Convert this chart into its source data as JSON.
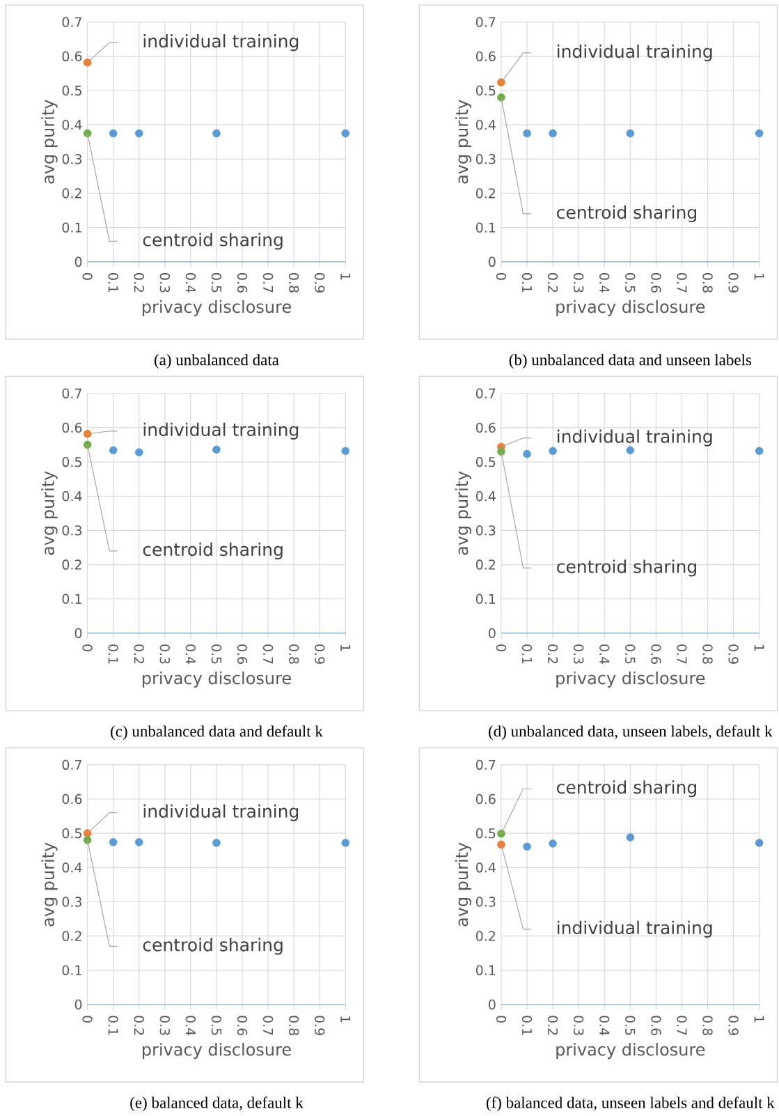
{
  "chart_data": [
    {
      "type": "scatter",
      "title": "(a) unbalanced data",
      "xlabel": "privacy disclosure",
      "ylabel": "avg purity",
      "xlim": [
        0,
        1
      ],
      "xticks": [
        0,
        0.1,
        0.2,
        0.3,
        0.4,
        0.5,
        0.6,
        0.7,
        0.8,
        0.9,
        1
      ],
      "ylim": [
        0,
        0.7
      ],
      "yticks": [
        0,
        0.1,
        0.2,
        0.3,
        0.4,
        0.5,
        0.6,
        0.7
      ],
      "grid": true,
      "marker": "circle",
      "series": [
        {
          "color": "#5b9bd5",
          "x": [
            0.1,
            0.2,
            0.5,
            1
          ],
          "values": [
            0.375,
            0.375,
            0.375,
            0.375
          ]
        },
        {
          "name": "individual training",
          "color": "#ed7d31",
          "x": [
            0
          ],
          "values": [
            0.582
          ]
        },
        {
          "name": "centroid sharing",
          "color": "#70ad47",
          "x": [
            0
          ],
          "values": [
            0.375
          ]
        }
      ]
    },
    {
      "type": "scatter",
      "title": "(b) unbalanced data and unseen labels",
      "xlabel": "privacy disclosure",
      "ylabel": "avg purity",
      "xlim": [
        0,
        1
      ],
      "xticks": [
        0,
        0.1,
        0.2,
        0.3,
        0.4,
        0.5,
        0.6,
        0.7,
        0.8,
        0.9,
        1
      ],
      "ylim": [
        0,
        0.7
      ],
      "yticks": [
        0,
        0.1,
        0.2,
        0.3,
        0.4,
        0.5,
        0.6,
        0.7
      ],
      "grid": true,
      "marker": "circle",
      "series": [
        {
          "color": "#5b9bd5",
          "x": [
            0.1,
            0.2,
            0.5,
            1
          ],
          "values": [
            0.375,
            0.375,
            0.375,
            0.375
          ]
        },
        {
          "name": "individual training",
          "color": "#ed7d31",
          "x": [
            0
          ],
          "values": [
            0.524
          ]
        },
        {
          "name": "centroid sharing",
          "color": "#70ad47",
          "x": [
            0
          ],
          "values": [
            0.48
          ]
        }
      ]
    },
    {
      "type": "scatter",
      "title": "(c) unbalanced data and default k",
      "xlabel": "privacy disclosure",
      "ylabel": "avg purity",
      "xlim": [
        0,
        1
      ],
      "xticks": [
        0,
        0.1,
        0.2,
        0.3,
        0.4,
        0.5,
        0.6,
        0.7,
        0.8,
        0.9,
        1
      ],
      "ylim": [
        0,
        0.7
      ],
      "yticks": [
        0,
        0.1,
        0.2,
        0.3,
        0.4,
        0.5,
        0.6,
        0.7
      ],
      "grid": true,
      "marker": "circle",
      "series": [
        {
          "color": "#5b9bd5",
          "x": [
            0.1,
            0.2,
            0.5,
            1
          ],
          "values": [
            0.534,
            0.528,
            0.536,
            0.532
          ]
        },
        {
          "name": "individual training",
          "color": "#ed7d31",
          "x": [
            0
          ],
          "values": [
            0.582
          ]
        },
        {
          "name": "centroid sharing",
          "color": "#70ad47",
          "x": [
            0
          ],
          "values": [
            0.55
          ]
        }
      ]
    },
    {
      "type": "scatter",
      "title": "(d) unbalanced data, unseen labels, default k",
      "xlabel": "privacy disclosure",
      "ylabel": "avg purity",
      "xlim": [
        0,
        1
      ],
      "xticks": [
        0,
        0.1,
        0.2,
        0.3,
        0.4,
        0.5,
        0.6,
        0.7,
        0.8,
        0.9,
        1
      ],
      "ylim": [
        0,
        0.7
      ],
      "yticks": [
        0,
        0.1,
        0.2,
        0.3,
        0.4,
        0.5,
        0.6,
        0.7
      ],
      "grid": true,
      "marker": "circle",
      "series": [
        {
          "color": "#5b9bd5",
          "x": [
            0.1,
            0.2,
            0.5,
            1
          ],
          "values": [
            0.523,
            0.532,
            0.534,
            0.532
          ]
        },
        {
          "name": "individual training",
          "color": "#ed7d31",
          "x": [
            0
          ],
          "values": [
            0.544
          ]
        },
        {
          "name": "centroid sharing",
          "color": "#70ad47",
          "x": [
            0
          ],
          "values": [
            0.53
          ]
        }
      ]
    },
    {
      "type": "scatter",
      "title": "(e) balanced data, default k",
      "xlabel": "privacy disclosure",
      "ylabel": "avg purity",
      "xlim": [
        0,
        1
      ],
      "xticks": [
        0,
        0.1,
        0.2,
        0.3,
        0.4,
        0.5,
        0.6,
        0.7,
        0.8,
        0.9,
        1
      ],
      "ylim": [
        0,
        0.7
      ],
      "yticks": [
        0,
        0.1,
        0.2,
        0.3,
        0.4,
        0.5,
        0.6,
        0.7
      ],
      "grid": true,
      "marker": "circle",
      "series": [
        {
          "color": "#5b9bd5",
          "x": [
            0.1,
            0.2,
            0.5,
            1
          ],
          "values": [
            0.474,
            0.474,
            0.472,
            0.472
          ]
        },
        {
          "name": "individual training",
          "color": "#ed7d31",
          "x": [
            0
          ],
          "values": [
            0.5
          ]
        },
        {
          "name": "centroid sharing",
          "color": "#70ad47",
          "x": [
            0
          ],
          "values": [
            0.48
          ]
        }
      ]
    },
    {
      "type": "scatter",
      "title": "(f) balanced data, unseen labels and default k",
      "xlabel": "privacy disclosure",
      "ylabel": "avg purity",
      "xlim": [
        0,
        1
      ],
      "xticks": [
        0,
        0.1,
        0.2,
        0.3,
        0.4,
        0.5,
        0.6,
        0.7,
        0.8,
        0.9,
        1
      ],
      "ylim": [
        0,
        0.7
      ],
      "yticks": [
        0,
        0.1,
        0.2,
        0.3,
        0.4,
        0.5,
        0.6,
        0.7
      ],
      "grid": true,
      "marker": "circle",
      "series": [
        {
          "color": "#5b9bd5",
          "x": [
            0.1,
            0.2,
            0.5,
            1
          ],
          "values": [
            0.461,
            0.47,
            0.488,
            0.472
          ]
        },
        {
          "name": "individual training",
          "color": "#ed7d31",
          "x": [
            0
          ],
          "values": [
            0.467
          ]
        },
        {
          "name": "centroid sharing",
          "color": "#70ad47",
          "x": [
            0
          ],
          "values": [
            0.499
          ]
        }
      ]
    }
  ]
}
